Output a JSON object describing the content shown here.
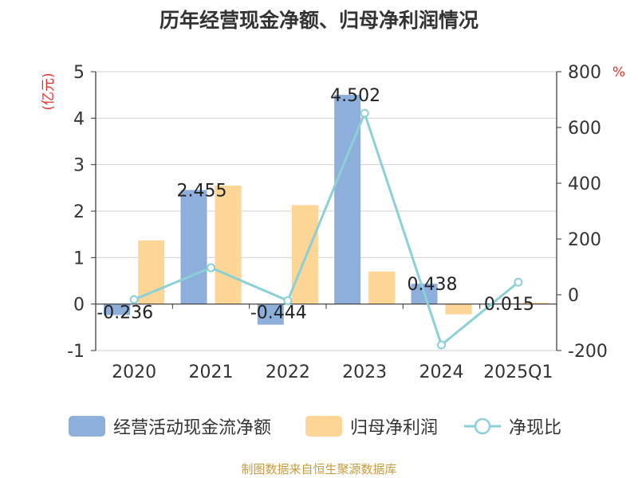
{
  "chart_data": {
    "type": "bar",
    "title": "历年经营现金净额、归母净利润情况",
    "categories": [
      "2020",
      "2021",
      "2022",
      "2023",
      "2024",
      "2025Q1"
    ],
    "y_left": {
      "unit_label": "(亿元)",
      "ylim": [
        -1,
        5
      ],
      "ticks": [
        "-1",
        "0",
        "1",
        "2",
        "3",
        "4",
        "5"
      ]
    },
    "y_right": {
      "unit_label": "%",
      "ylim": [
        -200,
        800
      ],
      "ticks": [
        "-200",
        "0",
        "200",
        "400",
        "600",
        "800"
      ]
    },
    "series": [
      {
        "name": "经营活动现金流净额",
        "type": "bar",
        "axis": "left",
        "values": [
          -0.236,
          2.455,
          -0.444,
          4.502,
          0.438,
          0.015
        ],
        "labels": [
          "-0.236",
          "2.455",
          "-0.444",
          "4.502",
          "0.438",
          "0.015"
        ]
      },
      {
        "name": "归母净利润",
        "type": "bar",
        "axis": "left",
        "values": [
          1.37,
          2.55,
          2.13,
          0.7,
          -0.22,
          0.03
        ]
      },
      {
        "name": "净现比",
        "type": "line",
        "axis": "right",
        "values": [
          -17,
          97,
          -21,
          651,
          -180,
          45
        ]
      }
    ],
    "colors": {
      "bar1": "#8eaedb",
      "bar2": "#fdd696",
      "line": "#8ad0d6",
      "grid": "#d0d0d0",
      "axis_text": "#333333",
      "unit": "#e0302e"
    },
    "grid": true,
    "legend_position": "bottom"
  },
  "source": {
    "text": "制图数据来自恒生聚源数据库",
    "color": "#c79b3f"
  }
}
